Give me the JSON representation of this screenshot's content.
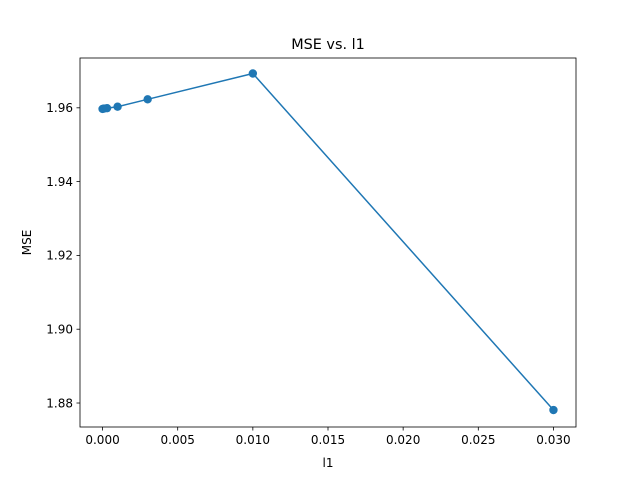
{
  "chart_data": {
    "type": "line",
    "title": "MSE vs. l1",
    "xlabel": "l1",
    "ylabel": "MSE",
    "xlim": [
      -0.0015,
      0.0315
    ],
    "ylim": [
      1.8735,
      1.9735
    ],
    "x_ticks": [
      0.0,
      0.005,
      0.01,
      0.015,
      0.02,
      0.025,
      0.03
    ],
    "x_tick_labels": [
      "0.000",
      "0.005",
      "0.010",
      "0.015",
      "0.020",
      "0.025",
      "0.030"
    ],
    "y_ticks": [
      1.88,
      1.9,
      1.92,
      1.94,
      1.96
    ],
    "y_tick_labels": [
      "1.88",
      "1.90",
      "1.92",
      "1.94",
      "1.96"
    ],
    "grid": false,
    "series": [
      {
        "x": [
          0.0,
          0.0001,
          0.0003,
          0.001,
          0.003,
          0.01,
          0.03
        ],
        "y": [
          1.9597,
          1.9598,
          1.9599,
          1.9603,
          1.9623,
          1.9693,
          1.8781
        ],
        "color": "#1f77b4",
        "marker": "circle"
      }
    ]
  }
}
